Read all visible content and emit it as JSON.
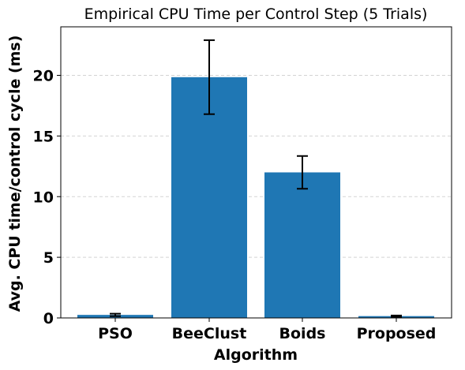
{
  "chart_data": {
    "type": "bar",
    "title": "Empirical CPU Time per Control Step (5 Trials)",
    "xlabel": "Algorithm",
    "ylabel": "Avg. CPU time/control cycle (ms)",
    "categories": [
      "PSO",
      "BeeClust",
      "Boids",
      "Proposed"
    ],
    "values": [
      0.25,
      19.85,
      12.0,
      0.15
    ],
    "errors": [
      0.1,
      3.05,
      1.35,
      0.05
    ],
    "ylim": [
      0,
      24
    ],
    "yticks": [
      "0",
      "5",
      "10",
      "15",
      "20"
    ],
    "ytick_values": [
      0,
      5,
      10,
      15,
      20
    ],
    "grid": "y, dashed",
    "colors": {
      "bar": "#1f77b4",
      "error_bar": "#000000",
      "grid": "#d3d3d3"
    }
  }
}
